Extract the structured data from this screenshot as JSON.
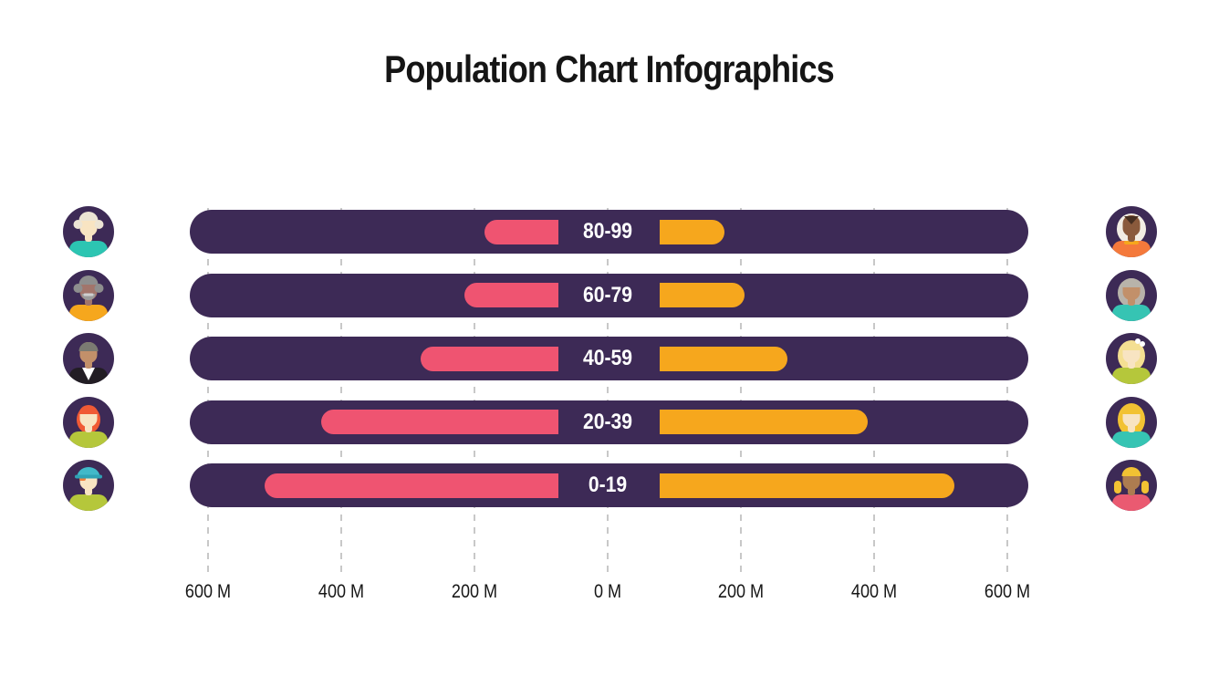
{
  "title": "Population Chart Infographics",
  "colors": {
    "background": "#ffffff",
    "track": "#3d2a56",
    "left_bar": "#ef5471",
    "right_bar": "#f6a71d",
    "grid": "#c8c8c8",
    "axis_text": "#161616",
    "label_text": "#ffffff"
  },
  "chart_data": {
    "type": "bar",
    "variant": "diverging-horizontal-pyramid",
    "title": "Population Chart Infographics",
    "unit": "millions of people",
    "categories": [
      "80-99",
      "60-79",
      "40-59",
      "20-39",
      "0-19"
    ],
    "series": [
      {
        "name": "left-population",
        "color": "#ef5471",
        "values": [
          185,
          215,
          280,
          430,
          515
        ]
      },
      {
        "name": "right-population",
        "color": "#f6a71d",
        "values": [
          175,
          205,
          270,
          390,
          520
        ]
      }
    ],
    "x_axis": {
      "tick_labels": [
        "600 M",
        "400 M",
        "200 M",
        "0 M",
        "200 M",
        "400 M",
        "600 M"
      ],
      "tick_values": [
        -600,
        -400,
        -200,
        0,
        200,
        400,
        600
      ],
      "grid_style": "dashed-vertical"
    },
    "legend": "none"
  },
  "avatars": {
    "left": [
      {
        "name": "elderly-man-white-hair-teal-shirt",
        "bg": "#3d2a56",
        "skin": "#f8e4c2",
        "hair": "#ece4d4",
        "shirt": "#2cc5b2",
        "side_puffs": true,
        "top_hair": true,
        "top_y": 16
      },
      {
        "name": "elderly-man-gray-beard-yellow-shirt",
        "bg": "#3d2a56",
        "skin": "#a2756b",
        "hair": "#8e8e8e",
        "shirt": "#f6a71d",
        "side_puffs": true,
        "top_hair": true,
        "top_y": 16,
        "beard": "#9b9b9b"
      },
      {
        "name": "man-gray-hair-black-jacket",
        "bg": "#3d2a56",
        "skin": "#c2906a",
        "hair": "#7b7b72",
        "shirt": "#221d24",
        "top_hair": true,
        "top_y": 20,
        "white_v": true
      },
      {
        "name": "woman-orange-hair-lime-shirt",
        "bg": "#3d2a56",
        "skin": "#f8e4c2",
        "hair": "#f05a35",
        "shirt": "#b5c73b",
        "back_hair": true,
        "back_rx": 13,
        "back_ry": 15,
        "top_hair": true,
        "top_y": 19
      },
      {
        "name": "kid-teal-cap-lime-shirt",
        "bg": "#3d2a56",
        "skin": "#f8e4c2",
        "hair": "#f2e3b2",
        "shirt": "#b5c73b",
        "fringe": "#f07f3c",
        "cap": "#41b9c9",
        "cap_dark": "#2fa3b5"
      }
    ],
    "right": [
      {
        "name": "woman-white-hair-orange-shirt",
        "bg": "#3d2a56",
        "skin": "#8a5a3c",
        "hair": "#f2ede4",
        "shirt": "#f4793b",
        "back_hair": true,
        "back_rx": 16,
        "back_ry": 17,
        "peak": "#472f21",
        "collar": "#f6a71d"
      },
      {
        "name": "elderly-woman-gray-hair-teal-shirt",
        "bg": "#3d2a56",
        "skin": "#c2906a",
        "hair": "#b8b3aa",
        "shirt": "#36c4b3",
        "back_hair": true,
        "back_rx": 15,
        "back_ry": 16,
        "top_hair": true,
        "top_y": 19
      },
      {
        "name": "woman-pale-blonde-bob-lime-shirt",
        "bg": "#3d2a56",
        "skin": "#f8e4c2",
        "hair": "#f4df92",
        "shirt": "#b5c73b",
        "back_hair": true,
        "back_rx": 15,
        "back_ry": 17,
        "top_hair": true,
        "top_y": 19,
        "bow": true
      },
      {
        "name": "woman-golden-hair-teal-shirt",
        "bg": "#3d2a56",
        "skin": "#f8e4c2",
        "hair": "#f2c233",
        "shirt": "#36c4b3",
        "back_hair": true,
        "back_rx": 15,
        "back_ry": 18,
        "top_hair": true,
        "top_y": 19
      },
      {
        "name": "girl-pigtails-pink-shirt",
        "bg": "#3d2a56",
        "skin": "#ad7c50",
        "hair": "#f2c233",
        "shirt": "#ea5a71",
        "pigtails": true,
        "top_hair": true,
        "top_y": 18
      }
    ]
  }
}
